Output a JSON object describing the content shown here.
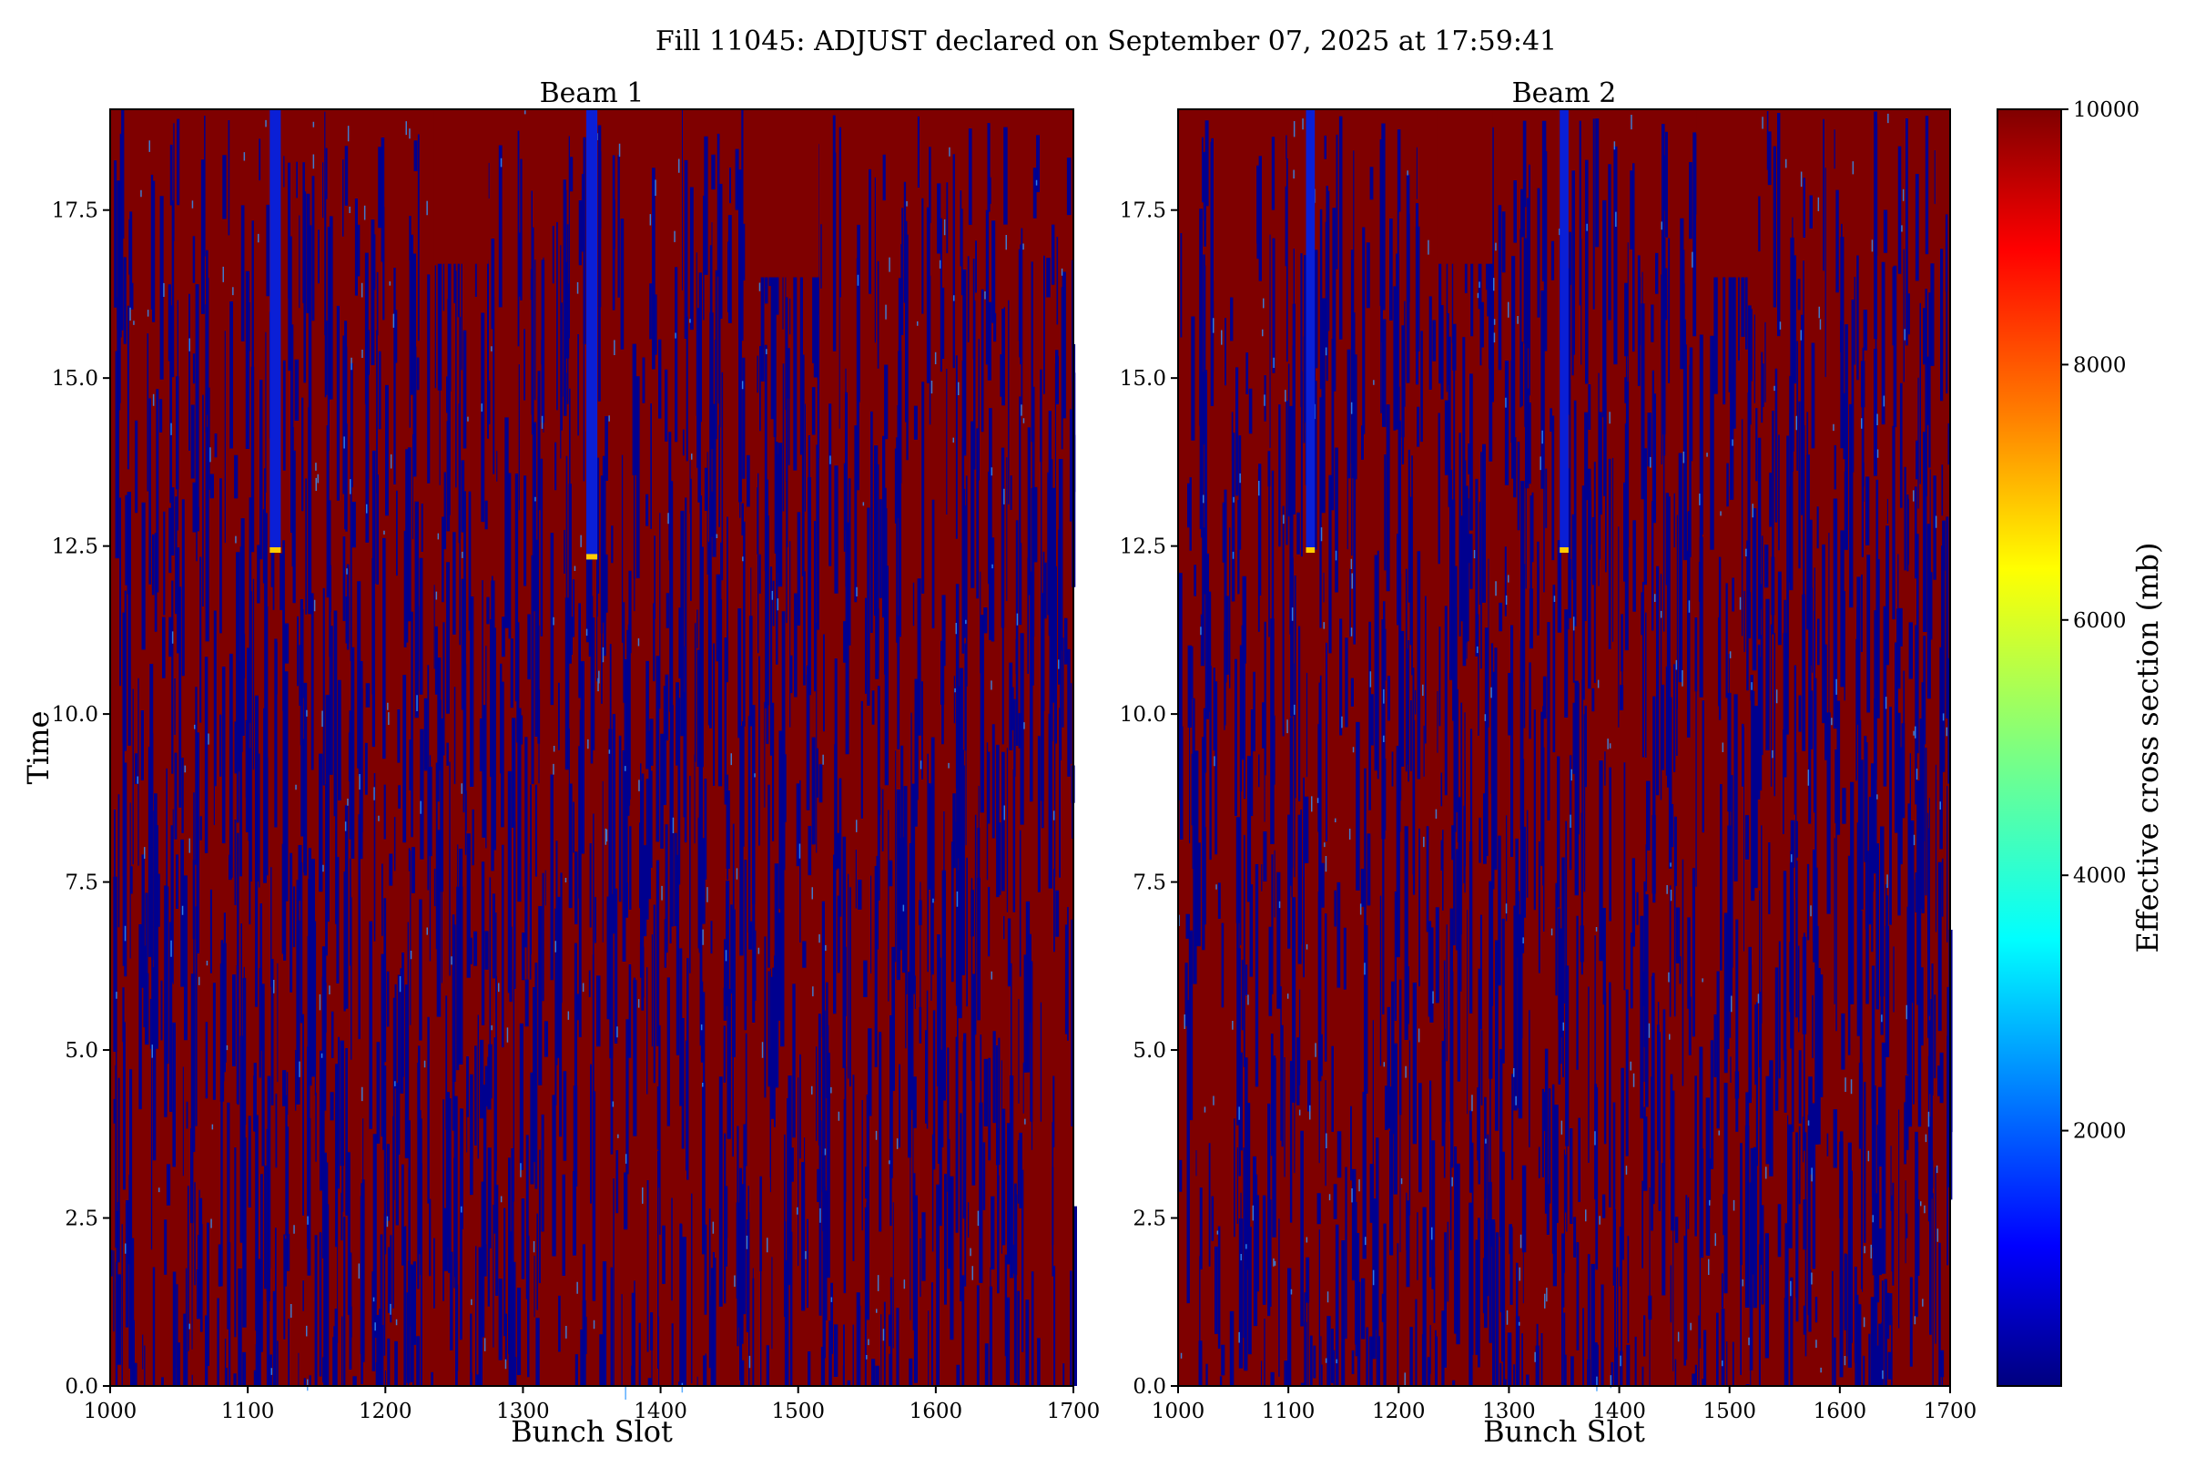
{
  "figure": {
    "suptitle": "Fill 11045: ADJUST declared on September 07, 2025 at 17:59:41"
  },
  "chart_data": [
    {
      "type": "heatmap",
      "title": "Beam 1",
      "xlabel": "Bunch Slot",
      "ylabel": "Time",
      "xlim": [
        1000,
        1700
      ],
      "ylim": [
        0,
        19
      ],
      "x_ticks": [
        1000,
        1100,
        1200,
        1300,
        1400,
        1500,
        1600,
        1700
      ],
      "x_tick_labels": [
        "1000",
        "1100",
        "1200",
        "1300",
        "1400",
        "1500",
        "1600",
        "1700"
      ],
      "y_ticks": [
        0,
        2.5,
        5,
        7.5,
        10,
        12.5,
        15,
        17.5
      ],
      "y_tick_labels": [
        "0.0",
        "2.5",
        "5.0",
        "7.5",
        "10.0",
        "12.5",
        "15.0",
        "17.5"
      ],
      "value_range": [
        0,
        10000
      ],
      "notable_features": [
        {
          "description": "low-value vertical stripe",
          "bunch_slot": 1120,
          "time_range": [
            12.4,
            19
          ]
        },
        {
          "description": "low-value vertical stripe",
          "bunch_slot": 1350,
          "time_range": [
            12.3,
            19
          ]
        },
        {
          "description": "saturated high block",
          "bunch_slot_range": [
            1235,
            1275
          ],
          "time_range": [
            16.7,
            19
          ]
        },
        {
          "description": "saturated high block",
          "bunch_slot_range": [
            1465,
            1515
          ],
          "time_range": [
            16.5,
            19
          ]
        }
      ]
    },
    {
      "type": "heatmap",
      "title": "Beam 2",
      "xlabel": "Bunch Slot",
      "ylabel": "",
      "xlim": [
        1000,
        1700
      ],
      "ylim": [
        0,
        19
      ],
      "x_ticks": [
        1000,
        1100,
        1200,
        1300,
        1400,
        1500,
        1600,
        1700
      ],
      "x_tick_labels": [
        "1000",
        "1100",
        "1200",
        "1300",
        "1400",
        "1500",
        "1600",
        "1700"
      ],
      "y_ticks": [
        0,
        2.5,
        5,
        7.5,
        10,
        12.5,
        15,
        17.5
      ],
      "y_tick_labels": [
        "0.0",
        "2.5",
        "5.0",
        "7.5",
        "10.0",
        "12.5",
        "15.0",
        "17.5"
      ],
      "value_range": [
        0,
        10000
      ],
      "notable_features": [
        {
          "description": "low-value vertical stripe",
          "bunch_slot": 1120,
          "time_range": [
            12.4,
            19
          ]
        },
        {
          "description": "low-value vertical stripe",
          "bunch_slot": 1350,
          "time_range": [
            12.4,
            19
          ]
        },
        {
          "description": "saturated high block",
          "bunch_slot_range": [
            1235,
            1285
          ],
          "time_range": [
            16.7,
            19
          ]
        },
        {
          "description": "saturated high block",
          "bunch_slot_range": [
            1470,
            1520
          ],
          "time_range": [
            16.5,
            19
          ]
        }
      ]
    }
  ],
  "colorbar": {
    "label": "Effective cross section (mb)",
    "range": [
      0,
      10000
    ],
    "ticks": [
      2000,
      4000,
      6000,
      8000,
      10000
    ],
    "tick_labels": [
      "2000",
      "4000",
      "6000",
      "8000",
      "10000"
    ],
    "colormap": "jet",
    "colors": [
      "#00007f",
      "#0000ff",
      "#007fff",
      "#00ffff",
      "#7fff7f",
      "#ffff00",
      "#ff7f00",
      "#ff0000",
      "#7f0000"
    ]
  }
}
